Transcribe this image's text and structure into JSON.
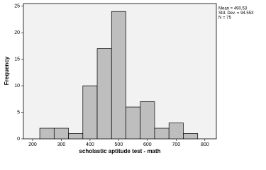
{
  "chart_data": {
    "type": "histogram",
    "x_label": "scholastic aptitude test - math",
    "y_label": "Frequency",
    "bins": [
      225,
      275,
      325,
      375,
      425,
      475,
      525,
      575,
      625,
      675,
      725,
      775
    ],
    "values": [
      2,
      2,
      1,
      10,
      17,
      24,
      6,
      7,
      2,
      3,
      1
    ],
    "color": "#bebebe",
    "xlim": [
      168,
      840
    ],
    "xticks": [
      200,
      300,
      400,
      500,
      600,
      700,
      800
    ],
    "ylim": [
      0,
      25.5
    ],
    "yticks": [
      0,
      5,
      10,
      15,
      20,
      25
    ],
    "annotations": [
      "Mean = 490.53",
      "Std. Dev. = 94.553",
      "N = 75"
    ]
  }
}
